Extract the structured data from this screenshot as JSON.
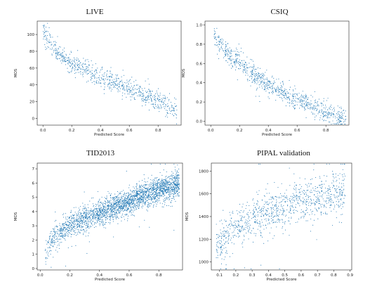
{
  "chart_data": [
    {
      "type": "scatter",
      "title": "LIVE",
      "xlabel": "Predicted Score",
      "ylabel": "MOS",
      "xlim": [
        -0.04,
        0.96
      ],
      "ylim": [
        -8,
        116
      ],
      "xticks": [
        0.0,
        0.2,
        0.4,
        0.6,
        0.8
      ],
      "yticks": [
        0,
        20,
        40,
        60,
        80,
        100
      ],
      "tick_decimals_x": 1,
      "tick_decimals_y": 0,
      "color": "#1f77b4",
      "grid": false,
      "trend": {
        "shape": "decreasing",
        "points": [
          [
            0.0,
            104
          ],
          [
            0.05,
            92
          ],
          [
            0.1,
            78
          ],
          [
            0.2,
            65
          ],
          [
            0.3,
            57
          ],
          [
            0.4,
            49
          ],
          [
            0.5,
            43
          ],
          [
            0.6,
            36
          ],
          [
            0.7,
            29
          ],
          [
            0.8,
            21
          ],
          [
            0.9,
            10
          ]
        ],
        "n_points": 780,
        "x_range": [
          0.0,
          0.93
        ],
        "noise": 6
      }
    },
    {
      "type": "scatter",
      "title": "CSIQ",
      "xlabel": "Predicted Score",
      "ylabel": "MOS",
      "xlim": [
        -0.04,
        0.96
      ],
      "ylim": [
        -0.04,
        1.04
      ],
      "xticks": [
        0.0,
        0.2,
        0.4,
        0.6,
        0.8
      ],
      "yticks": [
        0.0,
        0.2,
        0.4,
        0.6,
        0.8,
        1.0
      ],
      "tick_decimals_x": 1,
      "tick_decimals_y": 1,
      "color": "#1f77b4",
      "grid": false,
      "trend": {
        "shape": "decreasing",
        "points": [
          [
            0.02,
            0.88
          ],
          [
            0.05,
            0.82
          ],
          [
            0.1,
            0.74
          ],
          [
            0.2,
            0.6
          ],
          [
            0.3,
            0.48
          ],
          [
            0.4,
            0.38
          ],
          [
            0.5,
            0.3
          ],
          [
            0.6,
            0.22
          ],
          [
            0.7,
            0.16
          ],
          [
            0.8,
            0.1
          ],
          [
            0.9,
            0.04
          ]
        ],
        "n_points": 860,
        "x_range": [
          0.02,
          0.94
        ],
        "noise": 0.055
      }
    },
    {
      "type": "scatter",
      "title": "TID2013",
      "xlabel": "Predicted Score",
      "ylabel": "MOS",
      "xlim": [
        -0.02,
        0.96
      ],
      "ylim": [
        -0.1,
        7.4
      ],
      "xticks": [
        0.0,
        0.2,
        0.4,
        0.6,
        0.8
      ],
      "yticks": [
        0,
        1,
        2,
        3,
        4,
        5,
        6,
        7
      ],
      "tick_decimals_x": 1,
      "tick_decimals_y": 0,
      "color": "#1f77b4",
      "grid": false,
      "trend": {
        "shape": "increasing",
        "points": [
          [
            0.03,
            0.9
          ],
          [
            0.06,
            1.8
          ],
          [
            0.1,
            2.3
          ],
          [
            0.2,
            3.0
          ],
          [
            0.3,
            3.5
          ],
          [
            0.4,
            3.9
          ],
          [
            0.5,
            4.3
          ],
          [
            0.6,
            4.7
          ],
          [
            0.7,
            5.2
          ],
          [
            0.8,
            5.5
          ],
          [
            0.9,
            5.8
          ],
          [
            0.93,
            5.9
          ]
        ],
        "n_points": 2600,
        "x_range": [
          0.03,
          0.94
        ],
        "noise": 0.45
      }
    },
    {
      "type": "scatter",
      "title": "PIPAL validation",
      "xlabel": "Predicted Score",
      "ylabel": "MOS",
      "xlim": [
        0.05,
        0.91
      ],
      "ylim": [
        930,
        1870
      ],
      "xticks": [
        0.1,
        0.2,
        0.3,
        0.4,
        0.5,
        0.6,
        0.7,
        0.8,
        0.9
      ],
      "yticks": [
        1000,
        1200,
        1400,
        1600,
        1800
      ],
      "tick_decimals_x": 1,
      "tick_decimals_y": 0,
      "color": "#1f77b4",
      "grid": false,
      "trend": {
        "shape": "increasing",
        "points": [
          [
            0.08,
            1120
          ],
          [
            0.15,
            1230
          ],
          [
            0.2,
            1300
          ],
          [
            0.3,
            1380
          ],
          [
            0.4,
            1440
          ],
          [
            0.5,
            1490
          ],
          [
            0.6,
            1530
          ],
          [
            0.7,
            1560
          ],
          [
            0.8,
            1590
          ],
          [
            0.87,
            1610
          ]
        ],
        "n_points": 1000,
        "x_range": [
          0.08,
          0.87
        ],
        "noise": 95
      }
    }
  ]
}
